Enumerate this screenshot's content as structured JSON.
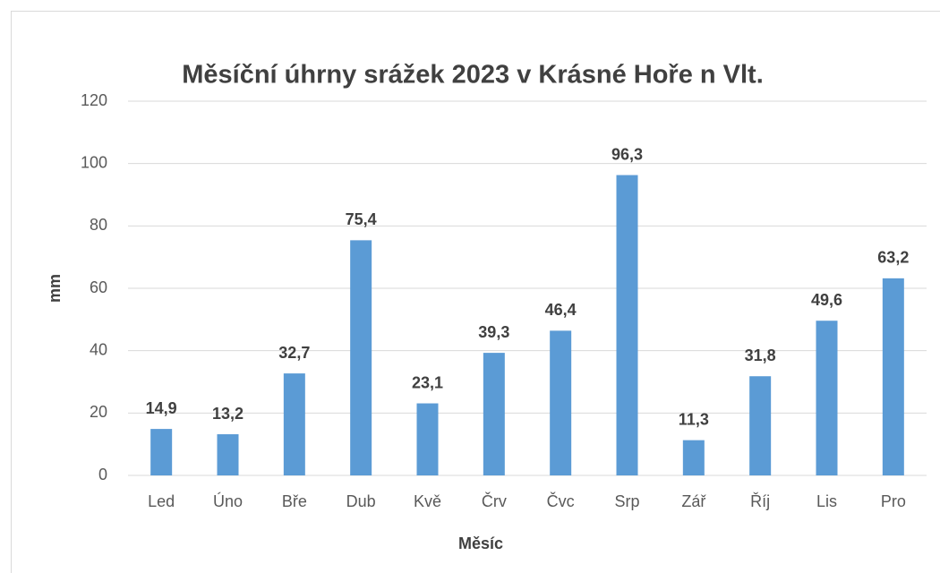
{
  "chart_data": {
    "type": "bar",
    "title": "Měsíční úhrny srážek 2023 v Krásné Hoře n Vlt.",
    "x_label": "Měsíc",
    "y_label": "mm",
    "categories": [
      "Led",
      "Úno",
      "Bře",
      "Dub",
      "Kvě",
      "Črv",
      "Čvc",
      "Srp",
      "Zář",
      "Říj",
      "Lis",
      "Pro"
    ],
    "values": [
      14.9,
      13.2,
      32.7,
      75.4,
      23.1,
      39.3,
      46.4,
      96.3,
      11.3,
      31.8,
      49.6,
      63.2
    ],
    "value_labels": [
      "14,9",
      "13,2",
      "32,7",
      "75,4",
      "23,1",
      "39,3",
      "46,4",
      "96,3",
      "11,3",
      "31,8",
      "49,6",
      "63,2"
    ],
    "color": "#5b9bd5",
    "ylim": [
      0,
      120
    ],
    "yticks": [
      0,
      20,
      40,
      60,
      80,
      100,
      120
    ],
    "grid": true
  }
}
